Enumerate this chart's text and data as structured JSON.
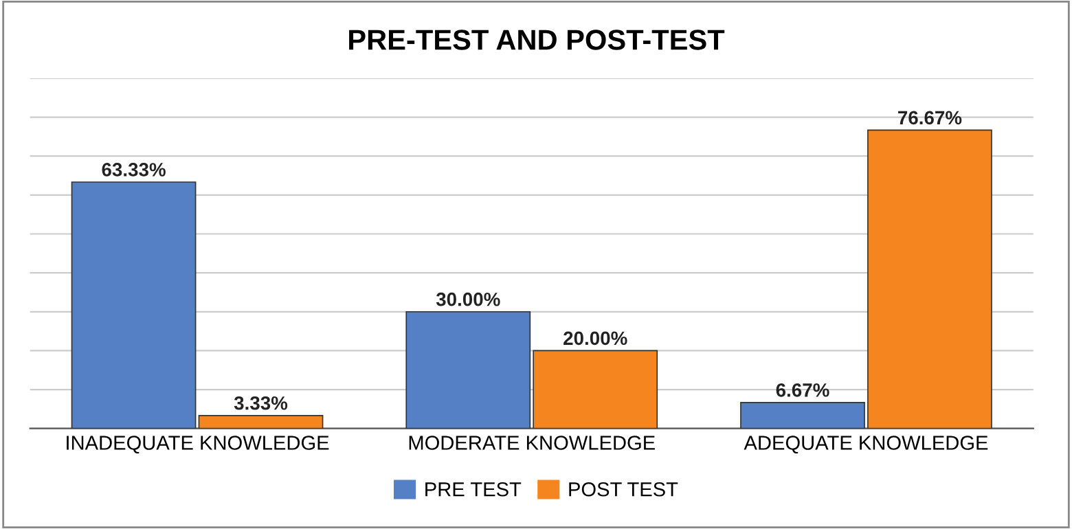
{
  "chart_data": {
    "type": "bar",
    "title": "PRE-TEST AND POST-TEST",
    "categories": [
      "INADEQUATE KNOWLEDGE",
      "MODERATE KNOWLEDGE",
      "ADEQUATE KNOWLEDGE"
    ],
    "series": [
      {
        "name": "PRE TEST",
        "color": "#5580c6",
        "values": [
          63.33,
          30.0,
          6.67
        ],
        "value_labels": [
          "63.33%",
          "30.00%",
          "6.67%"
        ]
      },
      {
        "name": "POST TEST",
        "color": "#f5861f",
        "values": [
          3.33,
          20.0,
          76.67
        ],
        "value_labels": [
          "3.33%",
          "20.00%",
          "76.67%"
        ]
      }
    ],
    "ylim": [
      0,
      90
    ],
    "yticks": [
      {
        "value": 0,
        "label": null
      },
      {
        "value": 10,
        "label": null
      },
      {
        "value": 20,
        "label": null
      },
      {
        "value": 30,
        "label": null
      },
      {
        "value": 40,
        "label": null
      },
      {
        "value": 50,
        "label": null
      },
      {
        "value": 60,
        "label": null
      },
      {
        "value": 70,
        "label": null
      },
      {
        "value": 80,
        "label": null
      },
      {
        "value": 90,
        "label": null
      }
    ],
    "tick_labels": "x",
    "grid": "y",
    "legend": "bottom"
  }
}
